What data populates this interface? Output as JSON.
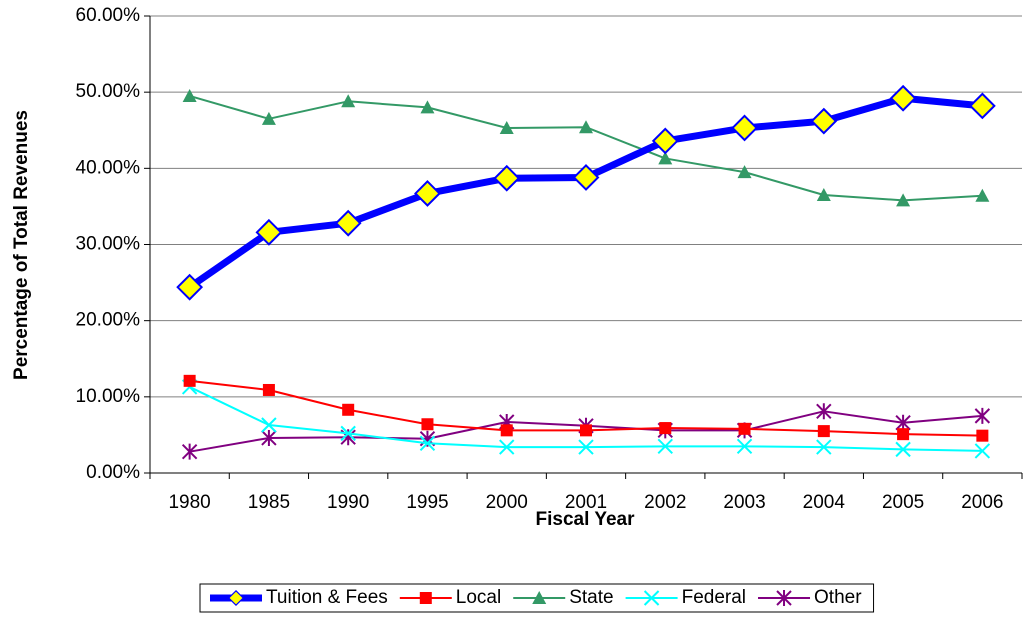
{
  "chart_data": {
    "type": "line",
    "x_label": "Fiscal Year",
    "y_label": "Percentage of Total Revenues",
    "categories": [
      "1980",
      "1985",
      "1990",
      "1995",
      "2000",
      "2001",
      "2002",
      "2003",
      "2004",
      "2005",
      "2006"
    ],
    "ylim": [
      0,
      60
    ],
    "yticks": [
      {
        "value": 0,
        "label": "0.00%"
      },
      {
        "value": 10,
        "label": "10.00%"
      },
      {
        "value": 20,
        "label": "20.00%"
      },
      {
        "value": 30,
        "label": "30.00%"
      },
      {
        "value": 40,
        "label": "40.00%"
      },
      {
        "value": 50,
        "label": "50.00%"
      },
      {
        "value": 60,
        "label": "60.00%"
      }
    ],
    "grid": true,
    "legend": "bottom",
    "series": [
      {
        "name": "Tuition & Fees",
        "color": "#0000ff",
        "marker": "diamond",
        "marker_fill": "#ffff00",
        "line_width": 7,
        "values": [
          24.4,
          31.6,
          32.8,
          36.7,
          38.7,
          38.8,
          43.6,
          45.3,
          46.2,
          49.2,
          48.2
        ]
      },
      {
        "name": "Local",
        "color": "#ff0000",
        "marker": "square",
        "marker_fill": "#ff0000",
        "line_width": 2,
        "values": [
          12.1,
          10.9,
          8.3,
          6.4,
          5.6,
          5.6,
          5.9,
          5.8,
          5.5,
          5.1,
          4.9
        ]
      },
      {
        "name": "State",
        "color": "#339966",
        "marker": "triangle",
        "marker_fill": "#339966",
        "line_width": 2,
        "values": [
          49.5,
          46.5,
          48.8,
          48.0,
          45.3,
          45.4,
          41.3,
          39.5,
          36.5,
          35.8,
          36.4
        ]
      },
      {
        "name": "Federal",
        "color": "#00ffff",
        "marker": "x",
        "marker_fill": "#00ffff",
        "line_width": 2,
        "values": [
          11.3,
          6.3,
          5.2,
          3.9,
          3.4,
          3.4,
          3.5,
          3.5,
          3.4,
          3.1,
          2.9
        ]
      },
      {
        "name": "Other",
        "color": "#800080",
        "marker": "star",
        "marker_fill": "#800080",
        "line_width": 2,
        "values": [
          2.8,
          4.6,
          4.7,
          4.5,
          6.7,
          6.2,
          5.6,
          5.6,
          8.1,
          6.6,
          7.5
        ]
      }
    ]
  }
}
